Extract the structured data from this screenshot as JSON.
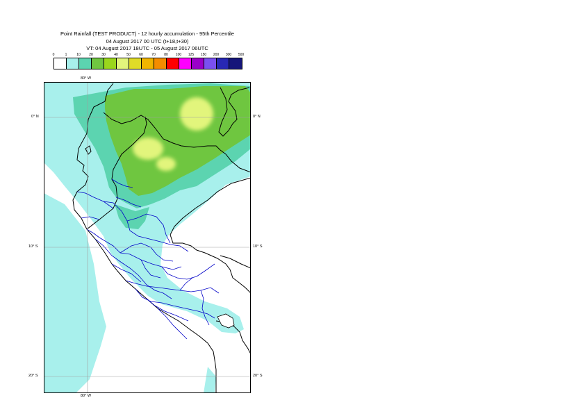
{
  "title": {
    "line1": "Point Rainfall (TEST PRODUCT) - 12 hourly accumulation - 95th Percentile",
    "line2": "04 August 2017 00 UTC (t+18,t+30)",
    "line3": "VT: 04 August 2017 18UTC - 05 August 2017 06UTC"
  },
  "legend": {
    "thresholds": [
      "0",
      "1",
      "10",
      "20",
      "30",
      "40",
      "50",
      "60",
      "70",
      "80",
      "100",
      "125",
      "150",
      "200",
      "300",
      "500"
    ],
    "colors": [
      "#ffffff",
      "#a8f0ec",
      "#5cd4b0",
      "#6fc640",
      "#9ad61c",
      "#e2f57c",
      "#e0dc28",
      "#f0b400",
      "#f48c00",
      "#ff0000",
      "#ff00ff",
      "#9a00c8",
      "#7a50f0",
      "#2828b4",
      "#16167a"
    ]
  },
  "map": {
    "ocean_color": "#ffffff",
    "land_color": "#ffffff",
    "coastline_color": "#000000",
    "admin_color": "#0000c8",
    "lon_labels": {
      "top": "80° W",
      "bottom": "80° W"
    },
    "lat_labels": [
      "0° N",
      "10° S",
      "20° S"
    ]
  }
}
